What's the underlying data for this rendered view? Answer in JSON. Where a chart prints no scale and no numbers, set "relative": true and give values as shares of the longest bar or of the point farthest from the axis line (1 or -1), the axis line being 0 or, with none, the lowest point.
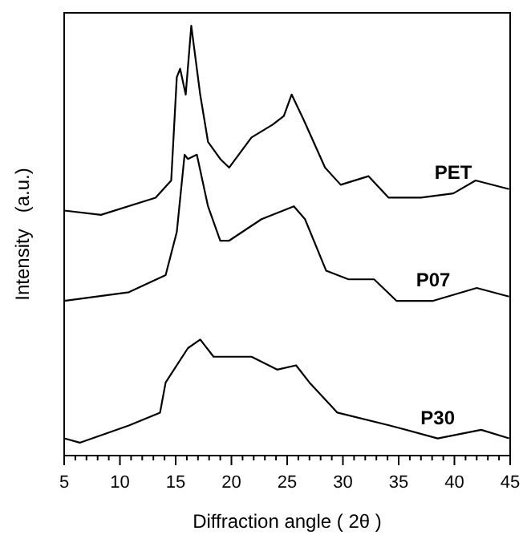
{
  "chart_data": {
    "type": "line",
    "xlabel": "Diffraction angle ( 2θ  )",
    "ylabel": "Intensity   (a.u.)",
    "relative": true,
    "legend": false,
    "tick_labels": "x",
    "xlim": [
      5,
      45
    ],
    "xticks": [
      5,
      {
        "value": 6,
        "label": null
      },
      {
        "value": 7,
        "label": null
      },
      {
        "value": 8,
        "label": null
      },
      {
        "value": 9,
        "label": null
      },
      10,
      {
        "value": 11,
        "label": null
      },
      {
        "value": 12,
        "label": null
      },
      {
        "value": 13,
        "label": null
      },
      {
        "value": 14,
        "label": null
      },
      15,
      {
        "value": 16,
        "label": null
      },
      {
        "value": 17,
        "label": null
      },
      {
        "value": 18,
        "label": null
      },
      {
        "value": 19,
        "label": null
      },
      20,
      {
        "value": 21,
        "label": null
      },
      {
        "value": 22,
        "label": null
      },
      {
        "value": 23,
        "label": null
      },
      {
        "value": 24,
        "label": null
      },
      25,
      {
        "value": 26,
        "label": null
      },
      {
        "value": 27,
        "label": null
      },
      {
        "value": 28,
        "label": null
      },
      {
        "value": 29,
        "label": null
      },
      30,
      {
        "value": 31,
        "label": null
      },
      {
        "value": 32,
        "label": null
      },
      {
        "value": 33,
        "label": null
      },
      {
        "value": 34,
        "label": null
      },
      35,
      {
        "value": 36,
        "label": null
      },
      {
        "value": 37,
        "label": null
      },
      {
        "value": 38,
        "label": null
      },
      {
        "value": 39,
        "label": null
      },
      40,
      {
        "value": 41,
        "label": null
      },
      {
        "value": 42,
        "label": null
      },
      {
        "value": 43,
        "label": null
      },
      {
        "value": 44,
        "label": null
      },
      45
    ],
    "series": [
      {
        "name": "PET",
        "color": "#000000",
        "x": [
          5,
          8.3,
          13.2,
          14.6,
          15.1,
          15.4,
          15.9,
          16.4,
          17.2,
          17.9,
          19.0,
          19.8,
          21.8,
          23.7,
          24.7,
          25.4,
          26.5,
          28.4,
          29.8,
          32.3,
          34.1,
          37.0,
          39.9,
          41.9,
          44.9
        ],
        "values": [
          0.57,
          0.56,
          0.6,
          0.64,
          0.88,
          0.9,
          0.84,
          1,
          0.84,
          0.73,
          0.69,
          0.67,
          0.74,
          0.77,
          0.79,
          0.84,
          0.78,
          0.67,
          0.63,
          0.65,
          0.6,
          0.6,
          0.61,
          0.64,
          0.62
        ]
      },
      {
        "name": "P07",
        "color": "#000000",
        "x": [
          5,
          10.8,
          14.1,
          15.1,
          15.8,
          16.1,
          16.9,
          17.9,
          19.0,
          19.8,
          22.7,
          25.6,
          26.6,
          28.5,
          30.5,
          32.8,
          34.8,
          38.1,
          42.0,
          44.9
        ],
        "values": [
          0.36,
          0.38,
          0.42,
          0.52,
          0.7,
          0.69,
          0.7,
          0.58,
          0.5,
          0.5,
          0.55,
          0.58,
          0.55,
          0.43,
          0.41,
          0.41,
          0.36,
          0.36,
          0.39,
          0.37
        ]
      },
      {
        "name": "P30",
        "color": "#000000",
        "x": [
          5,
          6.4,
          10.8,
          13.6,
          14.1,
          16.1,
          17.2,
          18.4,
          21.8,
          24.1,
          25.8,
          27,
          29.5,
          34.2,
          38.5,
          42.4,
          44.9
        ],
        "values": [
          0.04,
          0.03,
          0.07,
          0.1,
          0.17,
          0.25,
          0.27,
          0.23,
          0.23,
          0.2,
          0.21,
          0.17,
          0.1,
          0.07,
          0.04,
          0.06,
          0.04
        ]
      }
    ]
  }
}
